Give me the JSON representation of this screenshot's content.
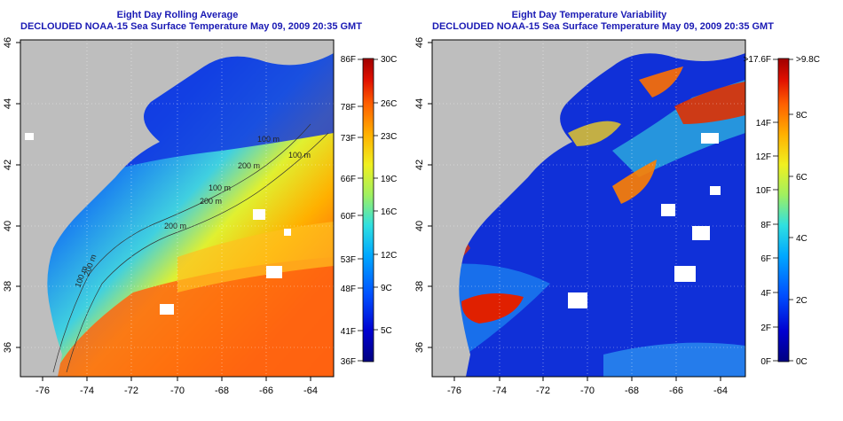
{
  "left_panel": {
    "title": "Eight Day Rolling Average",
    "subtitle": "DECLOUDED NOAA-15 Sea Surface Temperature May 09, 2009 20:35 GMT",
    "colorbar_f": [
      "86F",
      "78F",
      "73F",
      "66F",
      "60F",
      "53F",
      "48F",
      "41F",
      "36F"
    ],
    "colorbar_c": [
      "30C",
      "26C",
      "23C",
      "19C",
      "16C",
      "12C",
      "9C",
      "5C"
    ],
    "isobath_labels": [
      "100 m",
      "100 m",
      "200 m",
      "200 m",
      "100 m",
      "200 m",
      "100 m",
      "200 m"
    ]
  },
  "right_panel": {
    "title": "Eight Day Temperature Variability",
    "subtitle": "DECLOUDED NOAA-15 Sea Surface Temperature May 09, 2009 20:35 GMT",
    "colorbar_f": [
      ">17.6F",
      "14F",
      "12F",
      "10F",
      "8F",
      "6F",
      "4F",
      "2F",
      "0F"
    ],
    "colorbar_c": [
      ">9.8C",
      "8C",
      "6C",
      "4C",
      "2C",
      "0C"
    ]
  },
  "axes": {
    "x_ticks": [
      "-76",
      "-74",
      "-72",
      "-70",
      "-68",
      "-66",
      "-64"
    ],
    "y_ticks": [
      "46",
      "44",
      "42",
      "40",
      "38",
      "36"
    ]
  },
  "colors": {
    "land": "#bebebe",
    "title": "#1a1ab4",
    "sst_scale": [
      "#000080",
      "#0000d0",
      "#0050ff",
      "#00a8ff",
      "#30e0e0",
      "#a0f060",
      "#f0f020",
      "#ffb000",
      "#ff6000",
      "#e01000",
      "#a00000"
    ],
    "var_scale": [
      "#000080",
      "#0000d0",
      "#0050ff",
      "#00a8ff",
      "#30e0e0",
      "#a0f060",
      "#f0f020",
      "#ffb000",
      "#ff6000",
      "#e01000",
      "#a00000"
    ]
  }
}
